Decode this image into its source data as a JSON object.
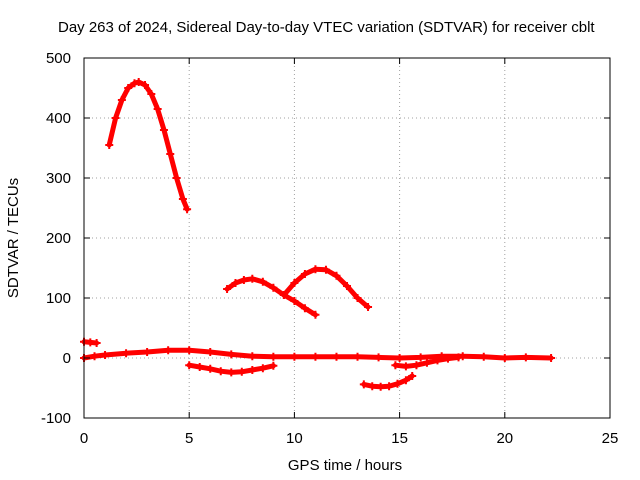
{
  "chart_data": {
    "type": "scatter",
    "title": "Day 263 of 2024, Sidereal Day-to-day VTEC variation (SDTVAR) for receiver cblt",
    "xlabel": "GPS time / hours",
    "ylabel": "SDTVAR / TECUs",
    "xlim": [
      0,
      25
    ],
    "ylim": [
      -100,
      500
    ],
    "xticks": [
      0,
      5,
      10,
      15,
      20,
      25
    ],
    "yticks": [
      -100,
      0,
      100,
      200,
      300,
      400,
      500
    ],
    "grid": true,
    "marker_color": "#ff0000",
    "series": [
      {
        "x": [
          1.2,
          1.5,
          1.8,
          2.1,
          2.4,
          2.6,
          2.9,
          3.2,
          3.5,
          3.8,
          4.1,
          4.4,
          4.7,
          4.9
        ],
        "y": [
          355,
          400,
          430,
          450,
          458,
          460,
          455,
          440,
          415,
          380,
          340,
          300,
          265,
          248
        ]
      },
      {
        "x": [
          6.8,
          7.2,
          7.6,
          8.0,
          8.5,
          9.0,
          9.5,
          10.0,
          10.5,
          11.0
        ],
        "y": [
          115,
          125,
          130,
          132,
          127,
          117,
          105,
          95,
          83,
          72
        ]
      },
      {
        "x": [
          9.5,
          10.0,
          10.5,
          11.0,
          11.5,
          12.0,
          12.5,
          13.0,
          13.5
        ],
        "y": [
          105,
          125,
          140,
          148,
          147,
          137,
          120,
          100,
          85
        ]
      },
      {
        "x": [
          0.0,
          0.5,
          1.0,
          2.0,
          3.0,
          4.0,
          5.0,
          6.0,
          7.0,
          8.0,
          9.0,
          10.0,
          11.0,
          12.0,
          13.0,
          14.0,
          15.0,
          16.0,
          17.0,
          18.0,
          19.0,
          20.0,
          21.0,
          22.2
        ],
        "y": [
          0,
          3,
          5,
          8,
          10,
          13,
          13,
          10,
          6,
          3,
          2,
          2,
          2,
          2,
          2,
          1,
          0,
          1,
          3,
          3,
          2,
          0,
          1,
          0
        ]
      },
      {
        "x": [
          0.0,
          0.3,
          0.6
        ],
        "y": [
          27,
          26,
          25
        ]
      },
      {
        "x": [
          5.0,
          5.5,
          6.0,
          6.5,
          7.0,
          7.5,
          8.0,
          8.5,
          9.0
        ],
        "y": [
          -12,
          -15,
          -18,
          -22,
          -24,
          -23,
          -20,
          -17,
          -13
        ]
      },
      {
        "x": [
          13.3,
          13.7,
          14.1,
          14.5,
          14.9,
          15.3,
          15.6
        ],
        "y": [
          -44,
          -47,
          -48,
          -47,
          -43,
          -37,
          -30
        ]
      },
      {
        "x": [
          14.8,
          15.3,
          15.8,
          16.3,
          16.8,
          17.3,
          17.8
        ],
        "y": [
          -12,
          -14,
          -12,
          -8,
          -4,
          -1,
          1
        ]
      }
    ]
  }
}
